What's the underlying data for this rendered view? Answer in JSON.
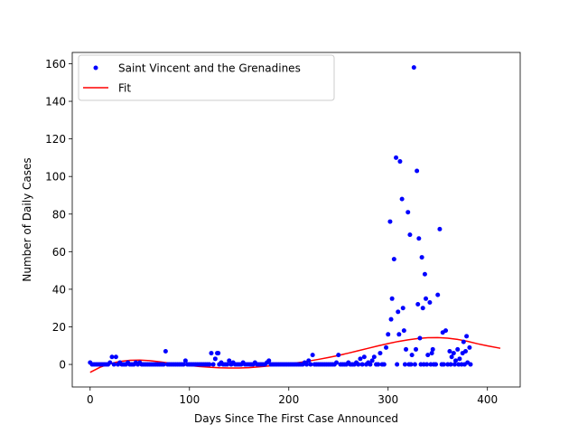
{
  "chart_data": {
    "type": "scatter",
    "xlabel": "Days Since The First Case Announced",
    "ylabel": "Number of Daily Cases",
    "xlim": [
      -18,
      433
    ],
    "ylim": [
      -12,
      166
    ],
    "xticks": [
      0,
      100,
      200,
      300,
      400
    ],
    "yticks": [
      0,
      20,
      40,
      60,
      80,
      100,
      120,
      140,
      160
    ],
    "grid": false,
    "legend_position": "top-left",
    "series": [
      {
        "name": "Saint Vincent and the Grenadines",
        "kind": "points",
        "color": "#0000ff",
        "points": [
          [
            0,
            1
          ],
          [
            2,
            0
          ],
          [
            4,
            0
          ],
          [
            6,
            0
          ],
          [
            8,
            0
          ],
          [
            10,
            0
          ],
          [
            12,
            0
          ],
          [
            14,
            0
          ],
          [
            16,
            0
          ],
          [
            18,
            0
          ],
          [
            20,
            1
          ],
          [
            22,
            4
          ],
          [
            24,
            0
          ],
          [
            26,
            4
          ],
          [
            28,
            0
          ],
          [
            30,
            1
          ],
          [
            32,
            0
          ],
          [
            34,
            0
          ],
          [
            36,
            0
          ],
          [
            38,
            1
          ],
          [
            40,
            0
          ],
          [
            42,
            0
          ],
          [
            44,
            0
          ],
          [
            46,
            1
          ],
          [
            48,
            0
          ],
          [
            50,
            1
          ],
          [
            52,
            0
          ],
          [
            54,
            0
          ],
          [
            56,
            0
          ],
          [
            58,
            0
          ],
          [
            60,
            0
          ],
          [
            62,
            0
          ],
          [
            64,
            0
          ],
          [
            66,
            0
          ],
          [
            68,
            0
          ],
          [
            70,
            0
          ],
          [
            72,
            0
          ],
          [
            74,
            0
          ],
          [
            76,
            7
          ],
          [
            78,
            0
          ],
          [
            80,
            0
          ],
          [
            82,
            0
          ],
          [
            84,
            0
          ],
          [
            86,
            0
          ],
          [
            88,
            0
          ],
          [
            90,
            0
          ],
          [
            92,
            0
          ],
          [
            94,
            0
          ],
          [
            96,
            2
          ],
          [
            98,
            0
          ],
          [
            100,
            0
          ],
          [
            102,
            0
          ],
          [
            104,
            0
          ],
          [
            106,
            0
          ],
          [
            108,
            0
          ],
          [
            110,
            0
          ],
          [
            112,
            0
          ],
          [
            114,
            0
          ],
          [
            116,
            0
          ],
          [
            118,
            0
          ],
          [
            120,
            0
          ],
          [
            122,
            6
          ],
          [
            124,
            0
          ],
          [
            126,
            3
          ],
          [
            128,
            6
          ],
          [
            129,
            6
          ],
          [
            130,
            0
          ],
          [
            132,
            1
          ],
          [
            134,
            0
          ],
          [
            136,
            0
          ],
          [
            138,
            0
          ],
          [
            140,
            2
          ],
          [
            142,
            0
          ],
          [
            144,
            1
          ],
          [
            146,
            0
          ],
          [
            148,
            0
          ],
          [
            150,
            0
          ],
          [
            152,
            0
          ],
          [
            154,
            1
          ],
          [
            156,
            0
          ],
          [
            158,
            0
          ],
          [
            160,
            0
          ],
          [
            162,
            0
          ],
          [
            164,
            0
          ],
          [
            166,
            1
          ],
          [
            168,
            0
          ],
          [
            170,
            0
          ],
          [
            172,
            0
          ],
          [
            174,
            0
          ],
          [
            176,
            0
          ],
          [
            178,
            1
          ],
          [
            180,
            2
          ],
          [
            182,
            0
          ],
          [
            184,
            0
          ],
          [
            186,
            0
          ],
          [
            188,
            0
          ],
          [
            190,
            0
          ],
          [
            192,
            0
          ],
          [
            194,
            0
          ],
          [
            196,
            0
          ],
          [
            198,
            0
          ],
          [
            200,
            0
          ],
          [
            202,
            0
          ],
          [
            204,
            0
          ],
          [
            206,
            0
          ],
          [
            208,
            0
          ],
          [
            210,
            0
          ],
          [
            212,
            0
          ],
          [
            214,
            0
          ],
          [
            216,
            1
          ],
          [
            218,
            0
          ],
          [
            220,
            2
          ],
          [
            222,
            0
          ],
          [
            224,
            5
          ],
          [
            226,
            0
          ],
          [
            228,
            0
          ],
          [
            230,
            0
          ],
          [
            232,
            0
          ],
          [
            234,
            0
          ],
          [
            236,
            0
          ],
          [
            238,
            0
          ],
          [
            240,
            0
          ],
          [
            242,
            0
          ],
          [
            244,
            0
          ],
          [
            246,
            0
          ],
          [
            248,
            1
          ],
          [
            250,
            5
          ],
          [
            252,
            0
          ],
          [
            254,
            0
          ],
          [
            256,
            0
          ],
          [
            258,
            0
          ],
          [
            260,
            1
          ],
          [
            262,
            0
          ],
          [
            264,
            0
          ],
          [
            266,
            0
          ],
          [
            268,
            1
          ],
          [
            270,
            0
          ],
          [
            272,
            3
          ],
          [
            274,
            0
          ],
          [
            276,
            4
          ],
          [
            278,
            0
          ],
          [
            280,
            1
          ],
          [
            282,
            0
          ],
          [
            284,
            2
          ],
          [
            286,
            4
          ],
          [
            288,
            0
          ],
          [
            290,
            0
          ],
          [
            292,
            6
          ],
          [
            294,
            0
          ],
          [
            296,
            0
          ],
          [
            298,
            9
          ],
          [
            300,
            16
          ],
          [
            302,
            76
          ],
          [
            303,
            24
          ],
          [
            304,
            35
          ],
          [
            306,
            56
          ],
          [
            308,
            110
          ],
          [
            309,
            0
          ],
          [
            310,
            28
          ],
          [
            311,
            16
          ],
          [
            312,
            108
          ],
          [
            314,
            88
          ],
          [
            315,
            30
          ],
          [
            316,
            18
          ],
          [
            317,
            0
          ],
          [
            318,
            8
          ],
          [
            320,
            81
          ],
          [
            321,
            0
          ],
          [
            322,
            69
          ],
          [
            323,
            0
          ],
          [
            324,
            5
          ],
          [
            326,
            158
          ],
          [
            327,
            0
          ],
          [
            328,
            8
          ],
          [
            329,
            103
          ],
          [
            330,
            32
          ],
          [
            331,
            67
          ],
          [
            332,
            14
          ],
          [
            333,
            0
          ],
          [
            334,
            57
          ],
          [
            335,
            30
          ],
          [
            336,
            0
          ],
          [
            337,
            48
          ],
          [
            338,
            35
          ],
          [
            339,
            0
          ],
          [
            340,
            5
          ],
          [
            342,
            33
          ],
          [
            343,
            0
          ],
          [
            344,
            6
          ],
          [
            345,
            8
          ],
          [
            346,
            0
          ],
          [
            348,
            0
          ],
          [
            350,
            37
          ],
          [
            352,
            72
          ],
          [
            354,
            0
          ],
          [
            355,
            17
          ],
          [
            356,
            0
          ],
          [
            358,
            18
          ],
          [
            360,
            0
          ],
          [
            362,
            7
          ],
          [
            363,
            0
          ],
          [
            364,
            4
          ],
          [
            366,
            6
          ],
          [
            367,
            0
          ],
          [
            368,
            2
          ],
          [
            370,
            8
          ],
          [
            371,
            0
          ],
          [
            372,
            3
          ],
          [
            374,
            0
          ],
          [
            375,
            6
          ],
          [
            376,
            12
          ],
          [
            377,
            0
          ],
          [
            378,
            7
          ],
          [
            379,
            15
          ],
          [
            380,
            1
          ],
          [
            382,
            9
          ],
          [
            383,
            0
          ]
        ]
      },
      {
        "name": "Fit",
        "kind": "line",
        "color": "#ff0000",
        "points": [
          [
            0,
            -4.2
          ],
          [
            10,
            -1.5
          ],
          [
            20,
            0.4
          ],
          [
            30,
            1.6
          ],
          [
            40,
            2.2
          ],
          [
            50,
            2.3
          ],
          [
            60,
            2.0
          ],
          [
            70,
            1.4
          ],
          [
            80,
            0.7
          ],
          [
            90,
            0.0
          ],
          [
            100,
            -0.6
          ],
          [
            110,
            -1.1
          ],
          [
            120,
            -1.5
          ],
          [
            130,
            -1.8
          ],
          [
            140,
            -1.9
          ],
          [
            150,
            -1.9
          ],
          [
            160,
            -1.7
          ],
          [
            170,
            -1.3
          ],
          [
            180,
            -0.8
          ],
          [
            190,
            -0.3
          ],
          [
            200,
            0.3
          ],
          [
            210,
            1.0
          ],
          [
            220,
            1.8
          ],
          [
            230,
            2.7
          ],
          [
            240,
            3.7
          ],
          [
            250,
            4.8
          ],
          [
            260,
            6.0
          ],
          [
            270,
            7.3
          ],
          [
            280,
            8.6
          ],
          [
            290,
            9.9
          ],
          [
            300,
            11.1
          ],
          [
            310,
            12.2
          ],
          [
            320,
            13.1
          ],
          [
            330,
            13.8
          ],
          [
            340,
            14.2
          ],
          [
            350,
            14.3
          ],
          [
            360,
            14.0
          ],
          [
            370,
            13.3
          ],
          [
            380,
            12.3
          ],
          [
            390,
            11.0
          ],
          [
            400,
            9.9
          ],
          [
            413,
            8.6
          ]
        ]
      }
    ]
  }
}
